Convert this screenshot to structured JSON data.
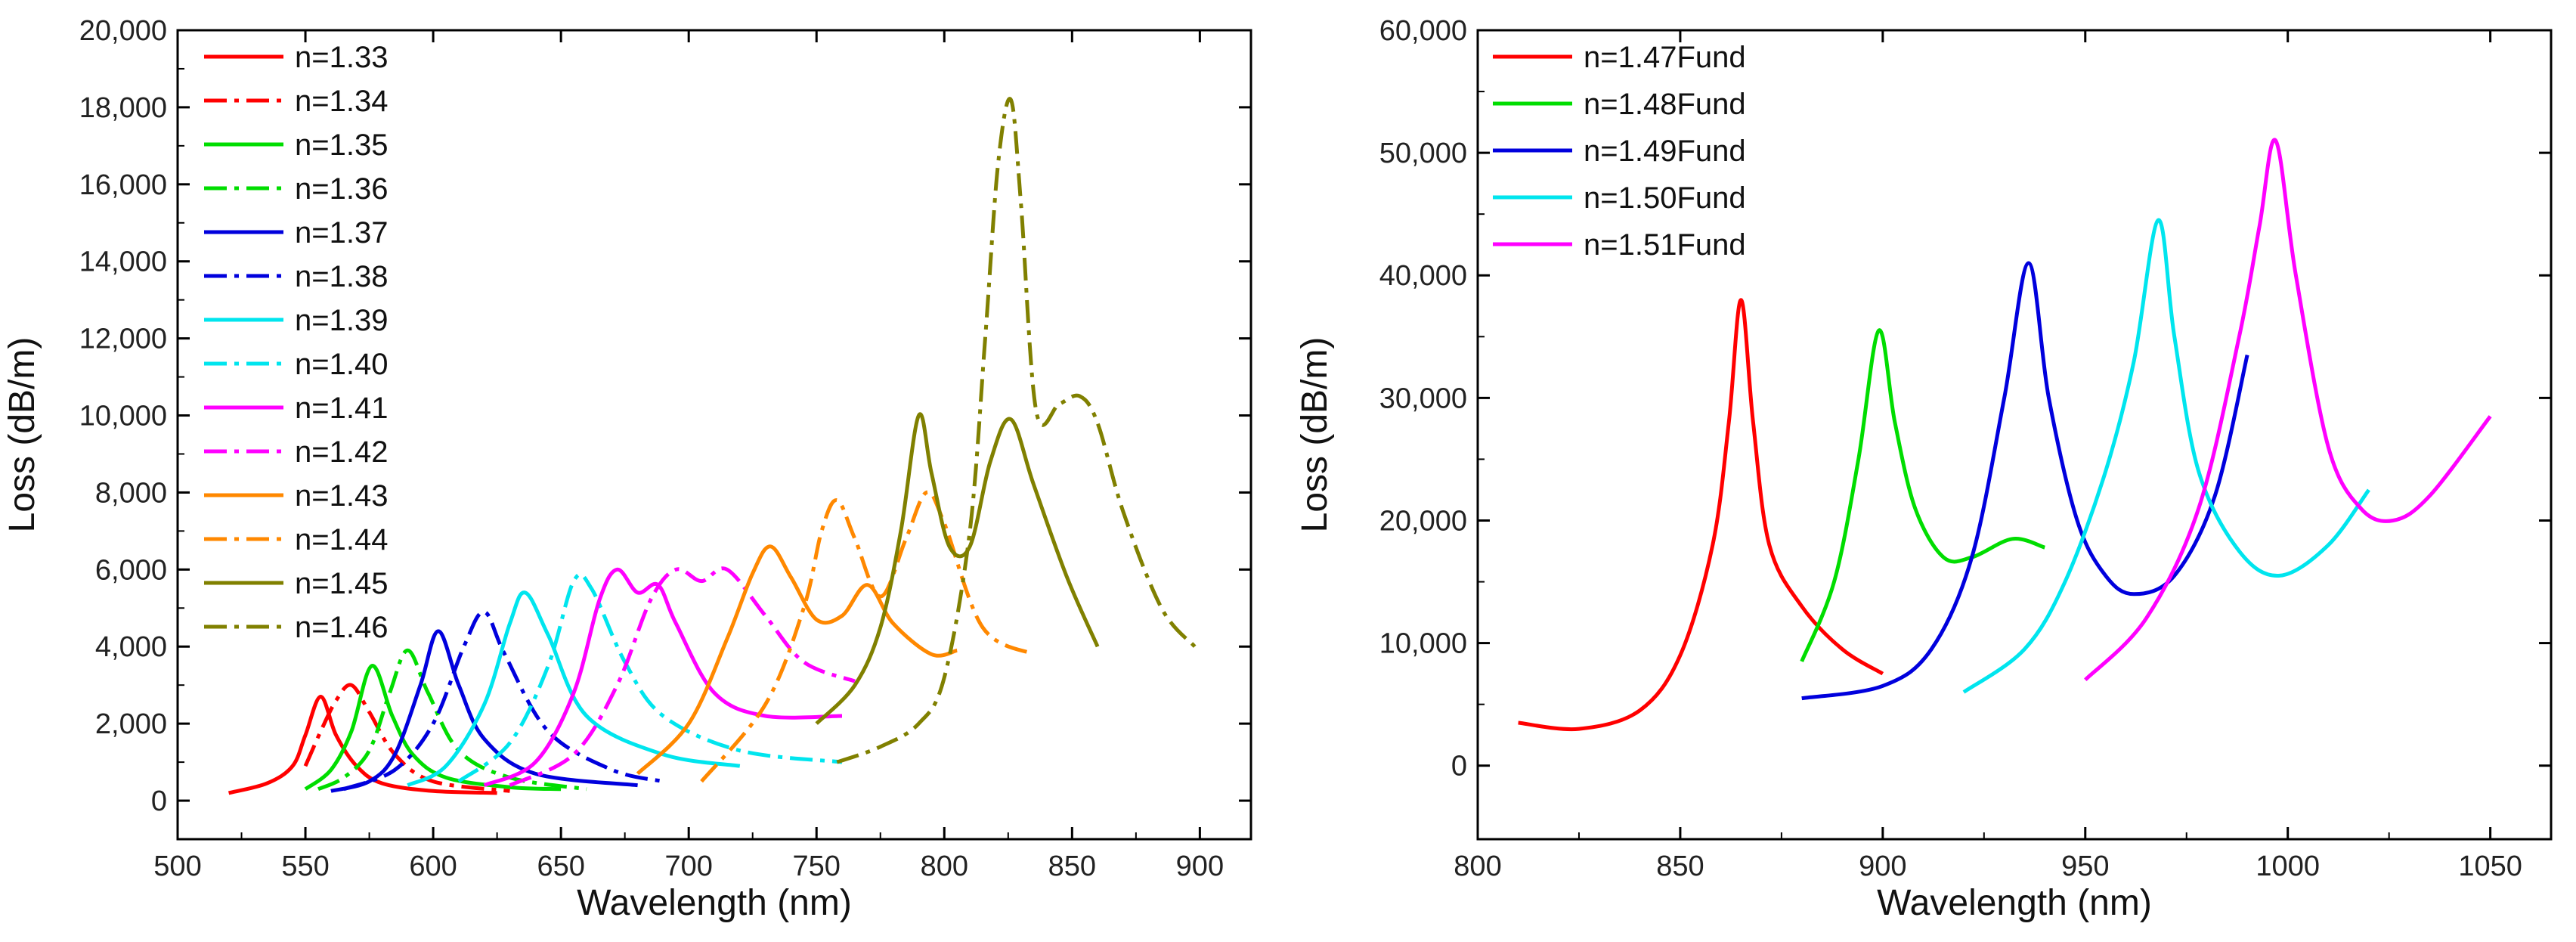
{
  "chart_data": [
    {
      "type": "line",
      "xlabel": "Wavelength (nm)",
      "ylabel": "Loss (dB/m)",
      "xlim": [
        500,
        920
      ],
      "ylim": [
        -1000,
        20000
      ],
      "xticks": [
        500,
        550,
        600,
        650,
        700,
        750,
        800,
        850,
        900
      ],
      "xtick_labels": [
        "500",
        "550",
        "600",
        "650",
        "700",
        "750",
        "800",
        "850",
        "900"
      ],
      "yticks": [
        0,
        2000,
        4000,
        6000,
        8000,
        10000,
        12000,
        14000,
        16000,
        18000,
        20000
      ],
      "ytick_labels": [
        "0",
        "2,000",
        "4,000",
        "6,000",
        "8,000",
        "10,000",
        "12,000",
        "14,000",
        "16,000",
        "18,000",
        "20,000"
      ],
      "legend_position": "top-left",
      "series": [
        {
          "name": "n=1.33",
          "color": "#ff0000",
          "style": "solid",
          "x": [
            520,
            535,
            545,
            550,
            556,
            562,
            570,
            580,
            600,
            625
          ],
          "y": [
            200,
            450,
            900,
            1700,
            2700,
            1700,
            900,
            450,
            250,
            200
          ]
        },
        {
          "name": "n=1.34",
          "color": "#ff0000",
          "style": "dashdot",
          "x": [
            550,
            556,
            562,
            568,
            575,
            585,
            600,
            630
          ],
          "y": [
            900,
            1800,
            2600,
            3000,
            2300,
            1200,
            500,
            250
          ]
        },
        {
          "name": "n=1.35",
          "color": "#00dd00",
          "style": "solid",
          "x": [
            550,
            560,
            568,
            576,
            584,
            592,
            605,
            630,
            650
          ],
          "y": [
            300,
            800,
            1800,
            3500,
            2200,
            1200,
            600,
            350,
            300
          ]
        },
        {
          "name": "n=1.36",
          "color": "#00dd00",
          "style": "dashdot",
          "x": [
            555,
            565,
            575,
            583,
            590,
            598,
            610,
            630,
            660
          ],
          "y": [
            300,
            600,
            1300,
            2800,
            3900,
            2800,
            1300,
            600,
            300
          ]
        },
        {
          "name": "n=1.37",
          "color": "#0000dd",
          "style": "solid",
          "x": [
            560,
            575,
            585,
            595,
            602,
            610,
            620,
            640,
            680
          ],
          "y": [
            250,
            500,
            1200,
            3000,
            4400,
            3000,
            1600,
            700,
            400
          ]
        },
        {
          "name": "n=1.38",
          "color": "#0000dd",
          "style": "dashdot",
          "x": [
            565,
            585,
            600,
            612,
            620,
            628,
            645,
            670,
            690
          ],
          "y": [
            300,
            800,
            2000,
            4000,
            4900,
            3800,
            1800,
            800,
            500
          ]
        },
        {
          "name": "n=1.39",
          "color": "#00e5ee",
          "style": "solid",
          "x": [
            590,
            605,
            620,
            630,
            636,
            645,
            660,
            690,
            720
          ],
          "y": [
            400,
            900,
            2500,
            4600,
            5400,
            4300,
            2200,
            1200,
            900
          ]
        },
        {
          "name": "n=1.40",
          "color": "#00e5ee",
          "style": "dashdot",
          "x": [
            610,
            630,
            645,
            655,
            662,
            675,
            690,
            720,
            760
          ],
          "y": [
            500,
            1500,
            3500,
            5700,
            5500,
            3600,
            2200,
            1300,
            1000
          ]
        },
        {
          "name": "n=1.41",
          "color": "#ff00ff",
          "style": "solid",
          "x": [
            620,
            640,
            655,
            665,
            672,
            680,
            688,
            695,
            710,
            730,
            760
          ],
          "y": [
            400,
            1000,
            2800,
            5200,
            6000,
            5400,
            5600,
            4600,
            2800,
            2200,
            2200
          ]
        },
        {
          "name": "n=1.42",
          "color": "#ff00ff",
          "style": "dashdot",
          "x": [
            630,
            655,
            672,
            685,
            695,
            705,
            715,
            730,
            745,
            765
          ],
          "y": [
            400,
            1200,
            3000,
            5200,
            6000,
            5700,
            6000,
            4800,
            3600,
            3100
          ]
        },
        {
          "name": "n=1.43",
          "color": "#ff8800",
          "style": "solid",
          "x": [
            680,
            700,
            715,
            725,
            732,
            740,
            750,
            760,
            770,
            780,
            795,
            805
          ],
          "y": [
            700,
            2000,
            4200,
            5900,
            6600,
            5800,
            4700,
            4800,
            5600,
            4600,
            3800,
            3900
          ]
        },
        {
          "name": "n=1.44",
          "color": "#ff8800",
          "style": "dashdot",
          "x": [
            705,
            730,
            745,
            752,
            758,
            765,
            775,
            785,
            793,
            800,
            815,
            835
          ],
          "y": [
            500,
            2500,
            5000,
            7000,
            7800,
            6800,
            5300,
            6800,
            8000,
            7200,
            4500,
            3800
          ]
        },
        {
          "name": "n=1.45",
          "color": "#808000",
          "style": "solid",
          "x": [
            750,
            765,
            775,
            783,
            790,
            795,
            802,
            810,
            818,
            826,
            835,
            848,
            860
          ],
          "y": [
            2000,
            3000,
            4500,
            7000,
            10000,
            8500,
            6600,
            6600,
            8800,
            9900,
            8200,
            5800,
            4000
          ]
        },
        {
          "name": "n=1.46",
          "color": "#808000",
          "style": "dashdot",
          "x": [
            758,
            775,
            790,
            800,
            810,
            816,
            821,
            826,
            830,
            836,
            845,
            853,
            860,
            870,
            885,
            898
          ],
          "y": [
            1000,
            1400,
            2000,
            3200,
            7000,
            12000,
            16500,
            18200,
            15500,
            10100,
            10300,
            10500,
            9800,
            7500,
            5000,
            4000
          ]
        }
      ]
    },
    {
      "type": "line",
      "xlabel": "Wavelength (nm)",
      "ylabel": "Loss (dB/m)",
      "xlim": [
        800,
        1065
      ],
      "ylim": [
        -6000,
        60000
      ],
      "xticks": [
        800,
        850,
        900,
        950,
        1000,
        1050
      ],
      "xtick_labels": [
        "800",
        "850",
        "900",
        "950",
        "1000",
        "1050"
      ],
      "yticks": [
        0,
        10000,
        20000,
        30000,
        40000,
        50000,
        60000
      ],
      "ytick_labels": [
        "0",
        "10,000",
        "20,000",
        "30,000",
        "40,000",
        "50,000",
        "60,000"
      ],
      "legend_position": "top-left",
      "series": [
        {
          "name": "n=1.47Fund",
          "color": "#ff0000",
          "style": "solid",
          "x": [
            810,
            825,
            840,
            850,
            858,
            862,
            865,
            868,
            872,
            880,
            890,
            900
          ],
          "y": [
            3500,
            3000,
            4500,
            9000,
            18000,
            28000,
            38000,
            28000,
            18000,
            13000,
            9500,
            7500
          ]
        },
        {
          "name": "n=1.48Fund",
          "color": "#00dd00",
          "style": "solid",
          "x": [
            880,
            888,
            894,
            899,
            903,
            908,
            915,
            922,
            932,
            940
          ],
          "y": [
            8500,
            15000,
            25000,
            35500,
            28000,
            21000,
            17000,
            17000,
            18500,
            17800
          ]
        },
        {
          "name": "n=1.49Fund",
          "color": "#0000dd",
          "style": "solid",
          "x": [
            880,
            900,
            912,
            922,
            930,
            936,
            941,
            948,
            955,
            962,
            972,
            982,
            990
          ],
          "y": [
            5500,
            6500,
            9500,
            17000,
            30000,
            41000,
            30000,
            20000,
            15500,
            14000,
            15500,
            22000,
            33500
          ]
        },
        {
          "name": "n=1.50Fund",
          "color": "#00e5ee",
          "style": "solid",
          "x": [
            920,
            935,
            945,
            955,
            962,
            968,
            972,
            978,
            988,
            998,
            1010,
            1020
          ],
          "y": [
            6000,
            9500,
            15000,
            24000,
            33000,
            44500,
            35000,
            24000,
            17500,
            15500,
            18000,
            22500
          ]
        },
        {
          "name": "n=1.51Fund",
          "color": "#ff00ff",
          "style": "solid",
          "x": [
            950,
            965,
            978,
            988,
            993,
            997,
            1002,
            1010,
            1018,
            1026,
            1035,
            1050
          ],
          "y": [
            7000,
            12000,
            21000,
            35000,
            44000,
            51000,
            40000,
            26000,
            21000,
            20000,
            22000,
            28500
          ]
        }
      ]
    }
  ]
}
